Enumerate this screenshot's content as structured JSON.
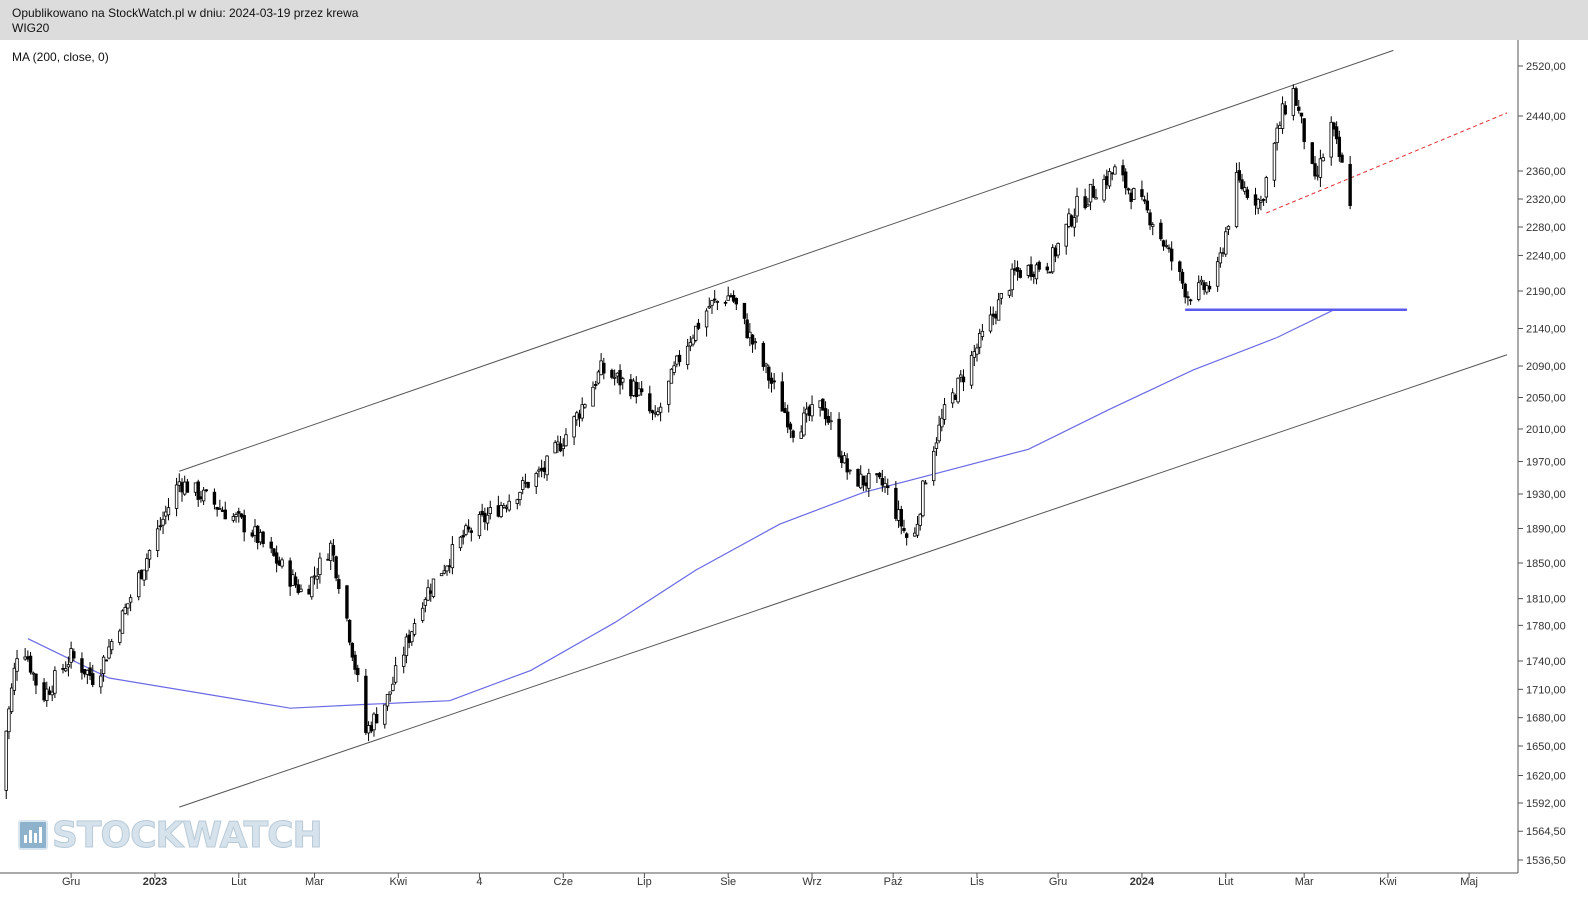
{
  "header": {
    "line1": "Opublikowano na StockWatch.pl w dniu: 2024-03-19 przez krewa",
    "line2": "WIG20"
  },
  "indicator_label": "MA (200, close, 0)",
  "logo": {
    "text": "STOCKWATCH",
    "icon": "bar-chart-icon"
  },
  "colors": {
    "candle": "#000000",
    "ma": "#6a6ae6",
    "channel": "#555555",
    "support": "#5a5af0",
    "dashed": "#e03030"
  },
  "chart_data": {
    "type": "candlestick",
    "instrument": "WIG20",
    "ylim": [
      1520,
      2545
    ],
    "y_scale": "log",
    "y_ticks": [
      {
        "v": 1536.5,
        "label": "1536,50"
      },
      {
        "v": 1564.5,
        "label": "1564,50"
      },
      {
        "v": 1592,
        "label": "1592,00"
      },
      {
        "v": 1620,
        "label": "1620,00"
      },
      {
        "v": 1650,
        "label": "1650,00"
      },
      {
        "v": 1680,
        "label": "1680,00"
      },
      {
        "v": 1710,
        "label": "1710,00"
      },
      {
        "v": 1740,
        "label": "1740,00"
      },
      {
        "v": 1780,
        "label": "1780,00"
      },
      {
        "v": 1810,
        "label": "1810,00"
      },
      {
        "v": 1850,
        "label": "1850,00"
      },
      {
        "v": 1890,
        "label": "1890,00"
      },
      {
        "v": 1930,
        "label": "1930,00"
      },
      {
        "v": 1970,
        "label": "1970,00"
      },
      {
        "v": 2010,
        "label": "2010,00"
      },
      {
        "v": 2050,
        "label": "2050,00"
      },
      {
        "v": 2090,
        "label": "2090,00"
      },
      {
        "v": 2140,
        "label": "2140,00"
      },
      {
        "v": 2190,
        "label": "2190,00"
      },
      {
        "v": 2240,
        "label": "2240,00"
      },
      {
        "v": 2280,
        "label": "2280,00"
      },
      {
        "v": 2320,
        "label": "2320,00"
      },
      {
        "v": 2360,
        "label": "2360,00"
      },
      {
        "v": 2440,
        "label": "2440,00"
      },
      {
        "v": 2520,
        "label": "2520,00"
      }
    ],
    "x_ticks": [
      {
        "date": "2022-12-01",
        "label": "Gru"
      },
      {
        "date": "2023-01-01",
        "label": "2023",
        "bold": true
      },
      {
        "date": "2023-02-01",
        "label": "Lut"
      },
      {
        "date": "2023-03-01",
        "label": "Mar"
      },
      {
        "date": "2023-04-01",
        "label": "Kwi"
      },
      {
        "date": "2023-05-01",
        "label": "4"
      },
      {
        "date": "2023-06-01",
        "label": "Cze"
      },
      {
        "date": "2023-07-01",
        "label": "Lip"
      },
      {
        "date": "2023-08-01",
        "label": "Sie"
      },
      {
        "date": "2023-09-01",
        "label": "Wrz"
      },
      {
        "date": "2023-10-01",
        "label": "Paź"
      },
      {
        "date": "2023-11-01",
        "label": "Lis"
      },
      {
        "date": "2023-12-01",
        "label": "Gru"
      },
      {
        "date": "2024-01-01",
        "label": "2024",
        "bold": true
      },
      {
        "date": "2024-02-01",
        "label": "Lut"
      },
      {
        "date": "2024-03-01",
        "label": "Mar"
      },
      {
        "date": "2024-04-01",
        "label": "Kwi"
      },
      {
        "date": "2024-05-01",
        "label": "Maj"
      }
    ],
    "anchors": [
      {
        "date": "2022-11-04",
        "close": 1605
      },
      {
        "date": "2022-11-12",
        "close": 1770
      },
      {
        "date": "2022-11-20",
        "close": 1700
      },
      {
        "date": "2022-12-01",
        "close": 1745
      },
      {
        "date": "2022-12-10",
        "close": 1720
      },
      {
        "date": "2022-12-20",
        "close": 1790
      },
      {
        "date": "2023-01-10",
        "close": 1945
      },
      {
        "date": "2023-01-20",
        "close": 1925
      },
      {
        "date": "2023-02-05",
        "close": 1890
      },
      {
        "date": "2023-02-25",
        "close": 1815
      },
      {
        "date": "2023-03-07",
        "close": 1870
      },
      {
        "date": "2023-03-12",
        "close": 1805
      },
      {
        "date": "2023-03-20",
        "close": 1665
      },
      {
        "date": "2023-03-28",
        "close": 1700
      },
      {
        "date": "2023-04-10",
        "close": 1810
      },
      {
        "date": "2023-04-25",
        "close": 1880
      },
      {
        "date": "2023-05-10",
        "close": 1920
      },
      {
        "date": "2023-05-25",
        "close": 1960
      },
      {
        "date": "2023-06-05",
        "close": 2020
      },
      {
        "date": "2023-06-15",
        "close": 2085
      },
      {
        "date": "2023-06-28",
        "close": 2060
      },
      {
        "date": "2023-07-05",
        "close": 2020
      },
      {
        "date": "2023-07-15",
        "close": 2110
      },
      {
        "date": "2023-07-25",
        "close": 2170
      },
      {
        "date": "2023-08-02",
        "close": 2185
      },
      {
        "date": "2023-08-12",
        "close": 2105
      },
      {
        "date": "2023-08-25",
        "close": 2010
      },
      {
        "date": "2023-09-05",
        "close": 2040
      },
      {
        "date": "2023-09-15",
        "close": 1950
      },
      {
        "date": "2023-09-28",
        "close": 1940
      },
      {
        "date": "2023-10-08",
        "close": 1865
      },
      {
        "date": "2023-10-14",
        "close": 1970
      },
      {
        "date": "2023-10-20",
        "close": 2030
      },
      {
        "date": "2023-10-30",
        "close": 2100
      },
      {
        "date": "2023-11-15",
        "close": 2215
      },
      {
        "date": "2023-11-28",
        "close": 2230
      },
      {
        "date": "2023-12-08",
        "close": 2310
      },
      {
        "date": "2023-12-22",
        "close": 2360
      },
      {
        "date": "2024-01-05",
        "close": 2290
      },
      {
        "date": "2024-01-18",
        "close": 2185
      },
      {
        "date": "2024-01-28",
        "close": 2200
      },
      {
        "date": "2024-02-05",
        "close": 2345
      },
      {
        "date": "2024-02-14",
        "close": 2315
      },
      {
        "date": "2024-02-22",
        "close": 2445
      },
      {
        "date": "2024-02-26",
        "close": 2480
      },
      {
        "date": "2024-03-05",
        "close": 2340
      },
      {
        "date": "2024-03-11",
        "close": 2425
      },
      {
        "date": "2024-03-19",
        "close": 2305
      }
    ],
    "ma200": [
      {
        "date": "2022-11-15",
        "value": 1765
      },
      {
        "date": "2022-12-15",
        "value": 1722
      },
      {
        "date": "2023-01-20",
        "value": 1705
      },
      {
        "date": "2023-02-20",
        "value": 1690
      },
      {
        "date": "2023-03-20",
        "value": 1694
      },
      {
        "date": "2023-04-20",
        "value": 1698
      },
      {
        "date": "2023-05-20",
        "value": 1730
      },
      {
        "date": "2023-06-20",
        "value": 1783
      },
      {
        "date": "2023-07-20",
        "value": 1842
      },
      {
        "date": "2023-08-20",
        "value": 1895
      },
      {
        "date": "2023-09-20",
        "value": 1932
      },
      {
        "date": "2023-10-20",
        "value": 1958
      },
      {
        "date": "2023-11-20",
        "value": 1985
      },
      {
        "date": "2023-12-20",
        "value": 2035
      },
      {
        "date": "2024-01-20",
        "value": 2085
      },
      {
        "date": "2024-02-20",
        "value": 2128
      },
      {
        "date": "2024-03-12",
        "value": 2165
      }
    ],
    "channel_upper": [
      {
        "date": "2023-01-10",
        "value": 1958
      },
      {
        "date": "2024-04-03",
        "value": 2545
      }
    ],
    "channel_lower": [
      {
        "date": "2023-01-10",
        "value": 1588
      },
      {
        "date": "2024-05-15",
        "value": 2105
      }
    ],
    "support_line": {
      "from": "2024-01-17",
      "to": "2024-04-08",
      "value": 2165
    },
    "dashed_trendline": [
      {
        "date": "2024-02-16",
        "value": 2300
      },
      {
        "date": "2024-05-15",
        "value": 2445
      }
    ]
  }
}
